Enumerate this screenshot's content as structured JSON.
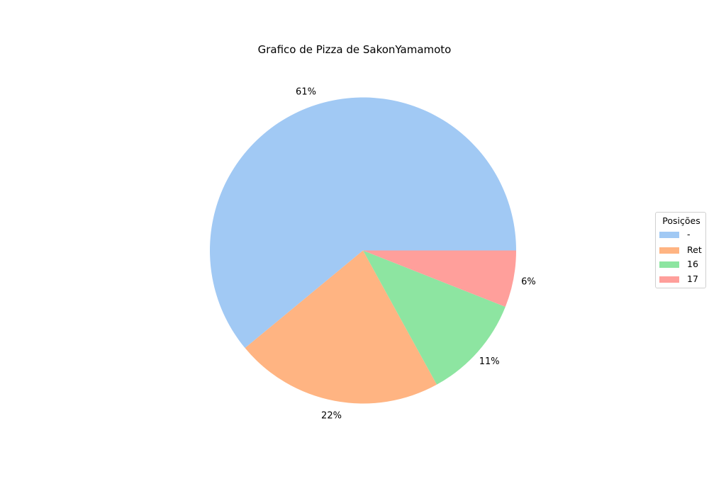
{
  "chart_data": {
    "type": "pie",
    "title": "Grafico de Pizza de SakonYamamoto",
    "legend_title": "Posições",
    "legend_position": "right",
    "start_angle_deg": 0,
    "direction": "counterclockwise",
    "slices": [
      {
        "label": "-",
        "value": 61,
        "pct_label": "61%",
        "color": "#a1c9f4"
      },
      {
        "label": "Ret",
        "value": 22,
        "pct_label": "22%",
        "color": "#ffb482"
      },
      {
        "label": "16",
        "value": 11,
        "pct_label": "11%",
        "color": "#8de5a1"
      },
      {
        "label": "17",
        "value": 6,
        "pct_label": "6%",
        "color": "#ff9f9b"
      }
    ]
  }
}
